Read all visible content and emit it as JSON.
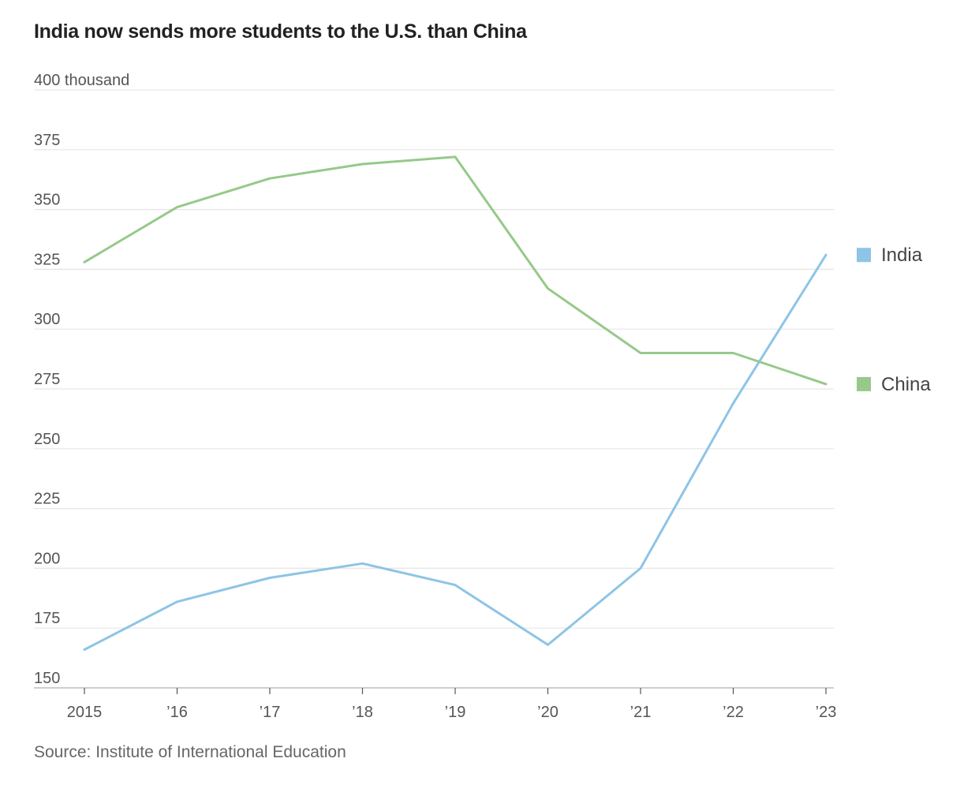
{
  "chart_data": {
    "type": "line",
    "title": "India now sends more students to the U.S. than China",
    "x": [
      2015,
      2016,
      2017,
      2018,
      2019,
      2020,
      2021,
      2022,
      2023
    ],
    "x_tick_labels": [
      "2015",
      "’16",
      "’17",
      "’18",
      "’19",
      "’20",
      "’21",
      "’22",
      "’23"
    ],
    "y_tick_labels": [
      "400 thousand",
      "375",
      "350",
      "325",
      "300",
      "275",
      "250",
      "225",
      "200",
      "175",
      "150"
    ],
    "y_ticks": [
      400,
      375,
      350,
      325,
      300,
      275,
      250,
      225,
      200,
      175,
      150
    ],
    "ylim": [
      150,
      400
    ],
    "grid": true,
    "legend_placement": "right",
    "series": [
      {
        "name": "India",
        "color": "#8ec4e6",
        "values": [
          166,
          186,
          196,
          202,
          193,
          168,
          200,
          269,
          331
        ]
      },
      {
        "name": "China",
        "color": "#96c98a",
        "values": [
          328,
          351,
          363,
          369,
          372,
          317,
          290,
          290,
          277
        ]
      }
    ]
  },
  "source": "Source: Institute of International Education"
}
